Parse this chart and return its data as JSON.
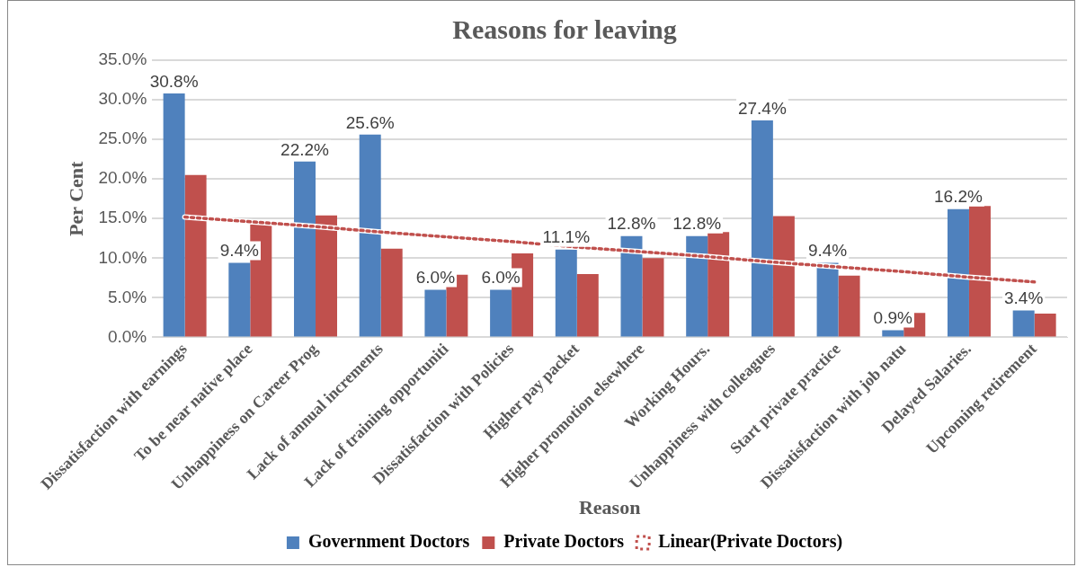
{
  "chart_data": {
    "type": "bar",
    "title": "Reasons for leaving",
    "xlabel": "Reason",
    "ylabel": "Per Cent",
    "categories": [
      "Dissatisfaction with earnings",
      "To be near native place",
      "Unhappiness on Career Prog",
      "Lack of annual increments",
      "Lack of training opportuniti",
      "Dissatisfaction with Policies",
      "Higher pay packet",
      "Higher promotion elsewhere",
      "Working Hours.",
      "Unhappiness with colleagues",
      "Start private practice",
      "Dissatisfaction with job natu",
      "Delayed Salaries.",
      "Upcoming retirement"
    ],
    "series": [
      {
        "name": "Government Doctors",
        "color": "#4f81bd",
        "values": [
          30.8,
          9.4,
          22.2,
          25.6,
          6.0,
          6.0,
          11.1,
          12.8,
          12.8,
          27.4,
          9.4,
          0.9,
          16.2,
          3.4
        ],
        "value_labels": [
          "30.8%",
          "9.4%",
          "22.2%",
          "25.6%",
          "6.0%",
          "6.0%",
          "11.1%",
          "12.8%",
          "12.8%",
          "27.4%",
          "9.4%",
          "0.9%",
          "16.2%",
          "3.4%"
        ]
      },
      {
        "name": "Private Doctors",
        "color": "#c0504d",
        "values": [
          20.5,
          14.3,
          15.4,
          11.2,
          7.9,
          10.6,
          8.0,
          10.0,
          13.3,
          15.3,
          7.8,
          3.1,
          16.6,
          3.0
        ]
      },
      {
        "name": "Linear(Private Doctors)",
        "type": "line",
        "color": "#c0504d",
        "line_style": "dotted",
        "marker": "none",
        "values": [
          15.2,
          14.6,
          14.0,
          13.3,
          12.7,
          12.1,
          11.4,
          10.8,
          10.2,
          9.5,
          8.9,
          8.3,
          7.6,
          7.0
        ]
      }
    ],
    "ylim": [
      0,
      35
    ],
    "yticks": [
      {
        "value": 0,
        "label": "0.0%"
      },
      {
        "value": 5,
        "label": "5.0%"
      },
      {
        "value": 10,
        "label": "10.0%"
      },
      {
        "value": 15,
        "label": "15.0%"
      },
      {
        "value": 20,
        "label": "20.0%"
      },
      {
        "value": 25,
        "label": "25.0%"
      },
      {
        "value": 30,
        "label": "30.0%"
      },
      {
        "value": 35,
        "label": "35.0%"
      }
    ],
    "grid": "y",
    "legend": "bottom"
  }
}
